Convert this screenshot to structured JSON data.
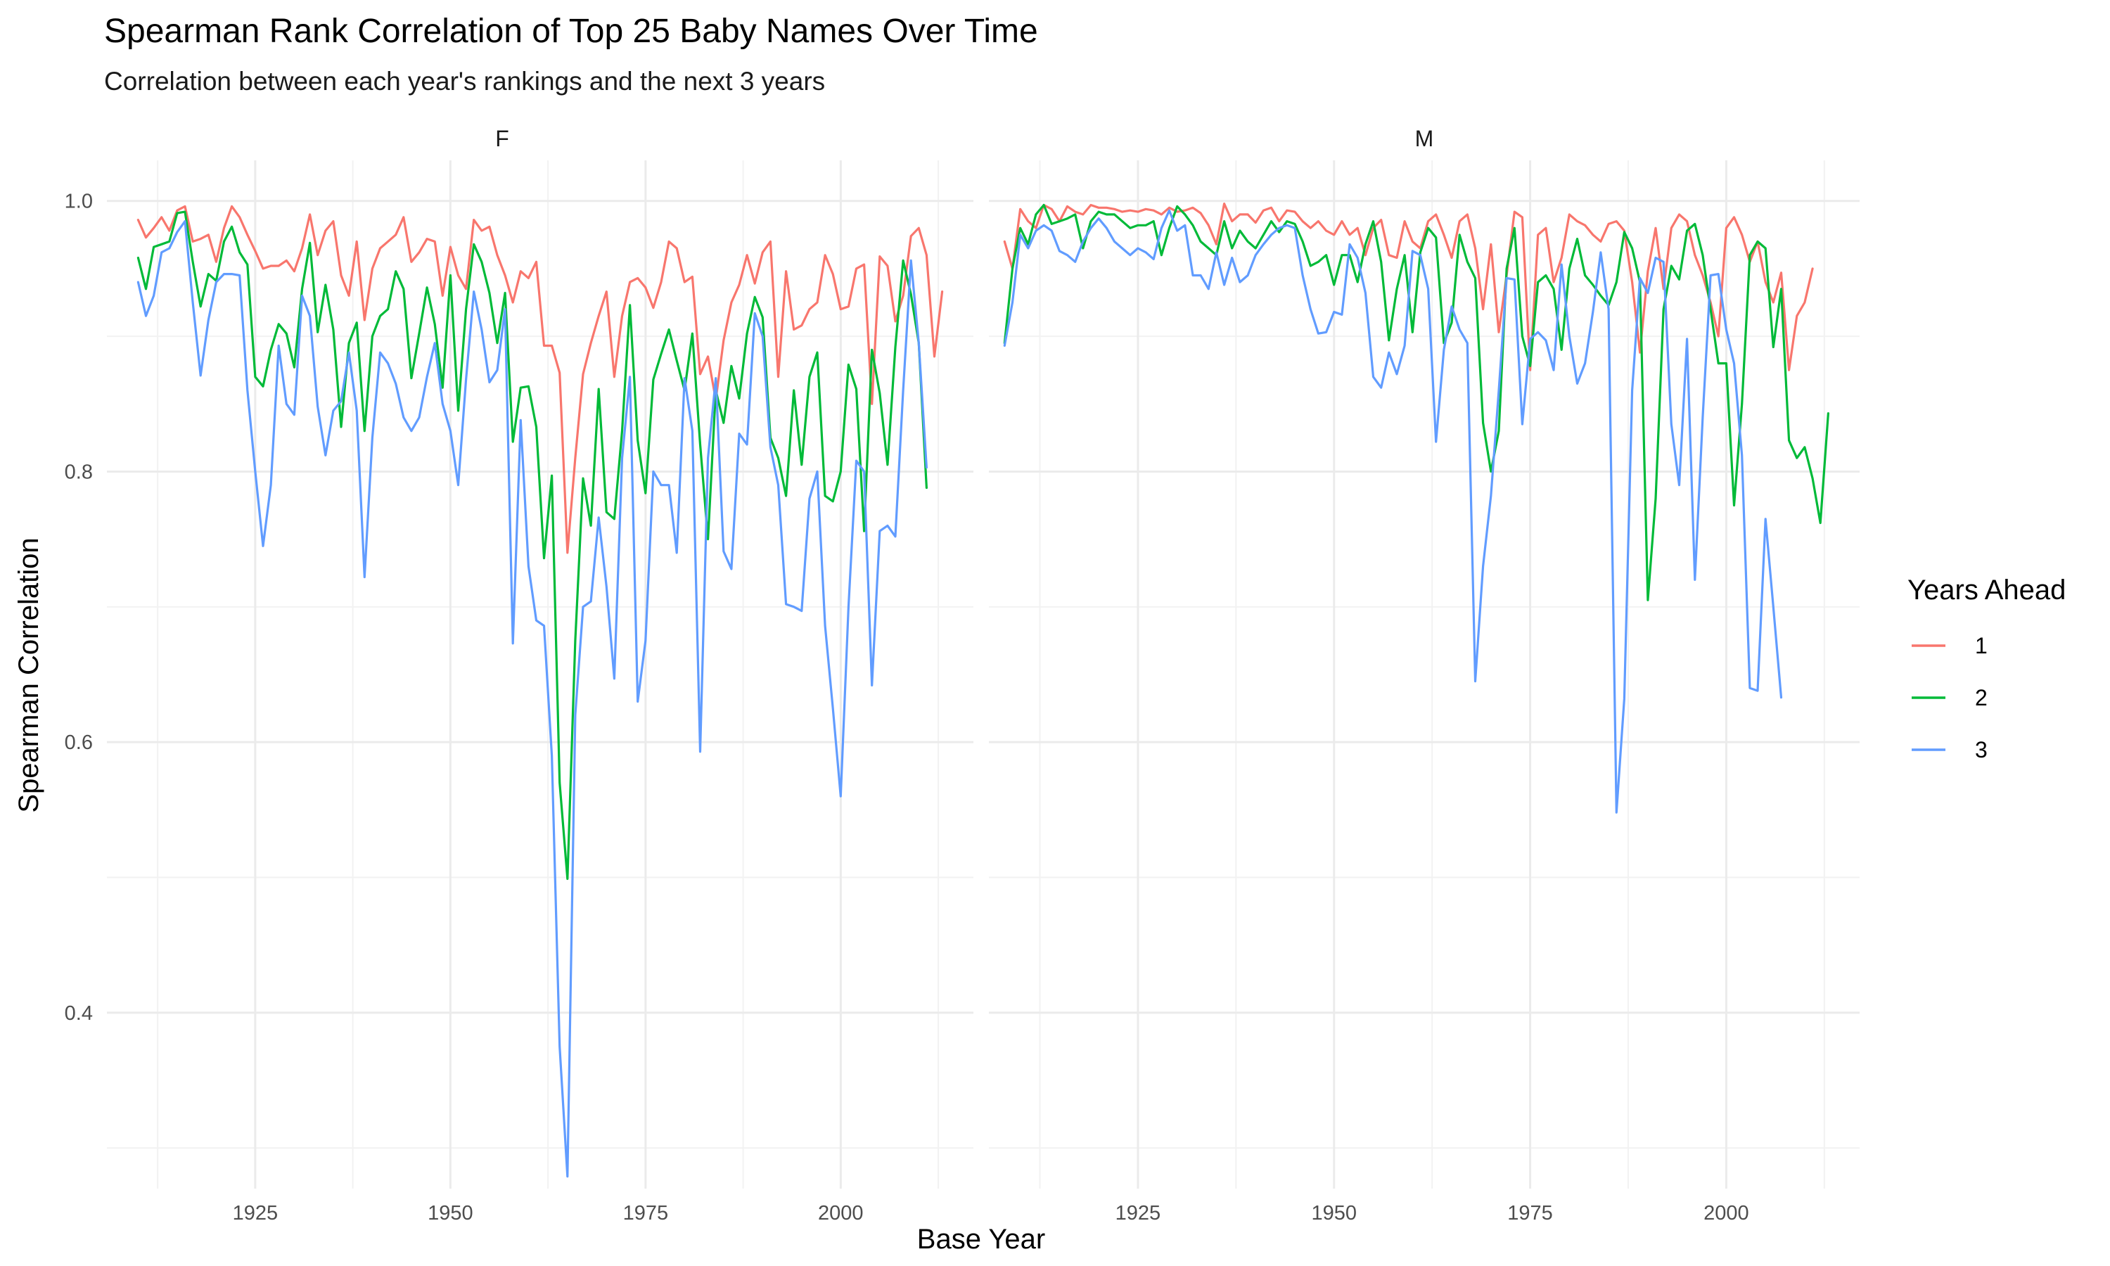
{
  "chart_data": {
    "type": "line",
    "title": "Spearman Rank Correlation of Top 25 Baby Names Over Time",
    "subtitle": "Correlation between each year's rankings and the next 3 years",
    "xlabel": "Base Year",
    "ylabel": "Spearman Correlation",
    "legend_title": "Years Ahead",
    "legend_position": "right",
    "grid": true,
    "xlim": [
      1906,
      2017
    ],
    "ylim": [
      0.27,
      1.03
    ],
    "x_ticks": [
      1925,
      1950,
      1975,
      2000
    ],
    "x_tick_labels": [
      "1925",
      "1950",
      "1975",
      "2000"
    ],
    "y_ticks": [
      0.4,
      0.6,
      0.8,
      1.0
    ],
    "y_tick_labels": [
      "0.4",
      "0.6",
      "0.8",
      "1.0"
    ],
    "series_names": [
      "1",
      "2",
      "3"
    ],
    "colors": {
      "1": "#F8766D",
      "2": "#00BA38",
      "3": "#619CFF"
    },
    "panels": [
      {
        "label": "F",
        "series": [
          {
            "name": "1",
            "x_start": 1910,
            "values": [
              0.986,
              0.973,
              0.98,
              0.988,
              0.978,
              0.993,
              0.996,
              0.97,
              0.972,
              0.975,
              0.955,
              0.98,
              0.996,
              0.988,
              0.975,
              0.963,
              0.95,
              0.952,
              0.952,
              0.956,
              0.948,
              0.965,
              0.99,
              0.96,
              0.978,
              0.985,
              0.945,
              0.93,
              0.97,
              0.912,
              0.95,
              0.965,
              0.97,
              0.975,
              0.988,
              0.955,
              0.962,
              0.972,
              0.97,
              0.93,
              0.966,
              0.945,
              0.935,
              0.986,
              0.978,
              0.981,
              0.96,
              0.945,
              0.925,
              0.948,
              0.943,
              0.955,
              0.893,
              0.893,
              0.873,
              0.74,
              0.81,
              0.872,
              0.895,
              0.915,
              0.933,
              0.87,
              0.915,
              0.94,
              0.943,
              0.936,
              0.921,
              0.94,
              0.97,
              0.965,
              0.94,
              0.944,
              0.872,
              0.885,
              0.853,
              0.897,
              0.925,
              0.938,
              0.96,
              0.939,
              0.962,
              0.97,
              0.87,
              0.948,
              0.905,
              0.908,
              0.92,
              0.925,
              0.96,
              0.946,
              0.92,
              0.922,
              0.95,
              0.953,
              0.85,
              0.959,
              0.952,
              0.911,
              0.93,
              0.974,
              0.98,
              0.96,
              0.885,
              0.933
            ]
          },
          {
            "name": "2",
            "x_start": 1910,
            "values": [
              0.958,
              0.935,
              0.966,
              0.968,
              0.97,
              0.991,
              0.992,
              0.955,
              0.922,
              0.946,
              0.941,
              0.97,
              0.981,
              0.962,
              0.953,
              0.87,
              0.863,
              0.89,
              0.909,
              0.902,
              0.877,
              0.935,
              0.969,
              0.903,
              0.938,
              0.905,
              0.833,
              0.895,
              0.91,
              0.83,
              0.9,
              0.915,
              0.92,
              0.948,
              0.935,
              0.869,
              0.902,
              0.936,
              0.909,
              0.862,
              0.945,
              0.845,
              0.92,
              0.968,
              0.955,
              0.932,
              0.895,
              0.932,
              0.822,
              0.862,
              0.863,
              0.833,
              0.736,
              0.797,
              0.57,
              0.499,
              0.675,
              0.795,
              0.76,
              0.861,
              0.77,
              0.765,
              0.83,
              0.923,
              0.823,
              0.784,
              0.868,
              0.887,
              0.905,
              0.882,
              0.86,
              0.902,
              0.82,
              0.75,
              0.86,
              0.836,
              0.878,
              0.854,
              0.902,
              0.929,
              0.914,
              0.825,
              0.81,
              0.782,
              0.86,
              0.805,
              0.87,
              0.888,
              0.782,
              0.778,
              0.8,
              0.879,
              0.861,
              0.756,
              0.89,
              0.858,
              0.805,
              0.892,
              0.956,
              0.931,
              0.895,
              0.788
            ]
          },
          {
            "name": "3",
            "x_start": 1910,
            "values": [
              0.94,
              0.915,
              0.93,
              0.962,
              0.965,
              0.977,
              0.985,
              0.925,
              0.871,
              0.912,
              0.94,
              0.946,
              0.946,
              0.945,
              0.86,
              0.8,
              0.745,
              0.79,
              0.893,
              0.85,
              0.842,
              0.93,
              0.915,
              0.848,
              0.812,
              0.845,
              0.852,
              0.888,
              0.845,
              0.722,
              0.825,
              0.888,
              0.88,
              0.865,
              0.84,
              0.83,
              0.84,
              0.87,
              0.895,
              0.85,
              0.83,
              0.79,
              0.868,
              0.933,
              0.905,
              0.866,
              0.875,
              0.92,
              0.673,
              0.838,
              0.73,
              0.69,
              0.686,
              0.59,
              0.375,
              0.279,
              0.62,
              0.7,
              0.704,
              0.766,
              0.715,
              0.647,
              0.81,
              0.87,
              0.63,
              0.675,
              0.8,
              0.79,
              0.79,
              0.74,
              0.869,
              0.83,
              0.593,
              0.81,
              0.869,
              0.741,
              0.728,
              0.828,
              0.82,
              0.917,
              0.9,
              0.818,
              0.79,
              0.702,
              0.7,
              0.697,
              0.78,
              0.8,
              0.686,
              0.625,
              0.56,
              0.7,
              0.808,
              0.8,
              0.642,
              0.756,
              0.76,
              0.752,
              0.86,
              0.956,
              0.895,
              0.803
            ]
          }
        ]
      },
      {
        "label": "M",
        "series": [
          {
            "name": "1",
            "x_start": 1908,
            "values": [
              0.97,
              0.95,
              0.994,
              0.985,
              0.98,
              0.997,
              0.994,
              0.985,
              0.996,
              0.992,
              0.99,
              0.997,
              0.995,
              0.995,
              0.994,
              0.992,
              0.993,
              0.992,
              0.994,
              0.993,
              0.99,
              0.995,
              0.992,
              0.993,
              0.995,
              0.991,
              0.982,
              0.968,
              0.998,
              0.985,
              0.99,
              0.99,
              0.984,
              0.993,
              0.995,
              0.985,
              0.993,
              0.992,
              0.985,
              0.98,
              0.985,
              0.978,
              0.975,
              0.985,
              0.975,
              0.98,
              0.96,
              0.98,
              0.986,
              0.96,
              0.958,
              0.985,
              0.97,
              0.965,
              0.985,
              0.99,
              0.975,
              0.958,
              0.985,
              0.99,
              0.965,
              0.92,
              0.968,
              0.903,
              0.945,
              0.992,
              0.988,
              0.875,
              0.975,
              0.98,
              0.94,
              0.958,
              0.99,
              0.985,
              0.982,
              0.975,
              0.97,
              0.983,
              0.985,
              0.978,
              0.94,
              0.888,
              0.948,
              0.98,
              0.935,
              0.98,
              0.99,
              0.985,
              0.96,
              0.945,
              0.925,
              0.9,
              0.98,
              0.988,
              0.975,
              0.955,
              0.97,
              0.94,
              0.925,
              0.947,
              0.875,
              0.915,
              0.925,
              0.95
            ]
          },
          {
            "name": "2",
            "x_start": 1908,
            "values": [
              0.895,
              0.95,
              0.98,
              0.968,
              0.99,
              0.997,
              0.983,
              0.985,
              0.987,
              0.99,
              0.965,
              0.985,
              0.992,
              0.99,
              0.99,
              0.985,
              0.98,
              0.982,
              0.982,
              0.985,
              0.96,
              0.98,
              0.996,
              0.99,
              0.982,
              0.97,
              0.965,
              0.96,
              0.985,
              0.965,
              0.978,
              0.97,
              0.965,
              0.975,
              0.985,
              0.977,
              0.985,
              0.983,
              0.97,
              0.952,
              0.955,
              0.96,
              0.938,
              0.96,
              0.96,
              0.94,
              0.968,
              0.985,
              0.955,
              0.897,
              0.935,
              0.96,
              0.903,
              0.962,
              0.98,
              0.973,
              0.895,
              0.91,
              0.975,
              0.955,
              0.943,
              0.836,
              0.8,
              0.83,
              0.95,
              0.98,
              0.9,
              0.878,
              0.94,
              0.945,
              0.935,
              0.89,
              0.95,
              0.972,
              0.945,
              0.938,
              0.93,
              0.923,
              0.94,
              0.977,
              0.965,
              0.94,
              0.705,
              0.78,
              0.92,
              0.952,
              0.942,
              0.978,
              0.983,
              0.96,
              0.92,
              0.88,
              0.88,
              0.775,
              0.85,
              0.96,
              0.97,
              0.965,
              0.892,
              0.935,
              0.823,
              0.81,
              0.818,
              0.795,
              0.762,
              0.843
            ]
          },
          {
            "name": "3",
            "x_start": 1908,
            "values": [
              0.893,
              0.925,
              0.975,
              0.965,
              0.978,
              0.982,
              0.978,
              0.963,
              0.96,
              0.955,
              0.97,
              0.98,
              0.987,
              0.98,
              0.97,
              0.965,
              0.96,
              0.965,
              0.962,
              0.957,
              0.98,
              0.993,
              0.978,
              0.982,
              0.945,
              0.945,
              0.935,
              0.962,
              0.938,
              0.958,
              0.94,
              0.945,
              0.96,
              0.968,
              0.975,
              0.98,
              0.982,
              0.98,
              0.945,
              0.92,
              0.902,
              0.903,
              0.918,
              0.916,
              0.968,
              0.958,
              0.932,
              0.87,
              0.862,
              0.888,
              0.872,
              0.893,
              0.963,
              0.96,
              0.935,
              0.822,
              0.89,
              0.922,
              0.905,
              0.895,
              0.645,
              0.73,
              0.782,
              0.86,
              0.943,
              0.942,
              0.835,
              0.898,
              0.903,
              0.897,
              0.875,
              0.953,
              0.9,
              0.865,
              0.88,
              0.918,
              0.962,
              0.92,
              0.548,
              0.632,
              0.86,
              0.943,
              0.932,
              0.958,
              0.955,
              0.835,
              0.79,
              0.898,
              0.72,
              0.84,
              0.945,
              0.946,
              0.905,
              0.88,
              0.812,
              0.64,
              0.638,
              0.765,
              0.7,
              0.633
            ]
          }
        ]
      }
    ]
  }
}
